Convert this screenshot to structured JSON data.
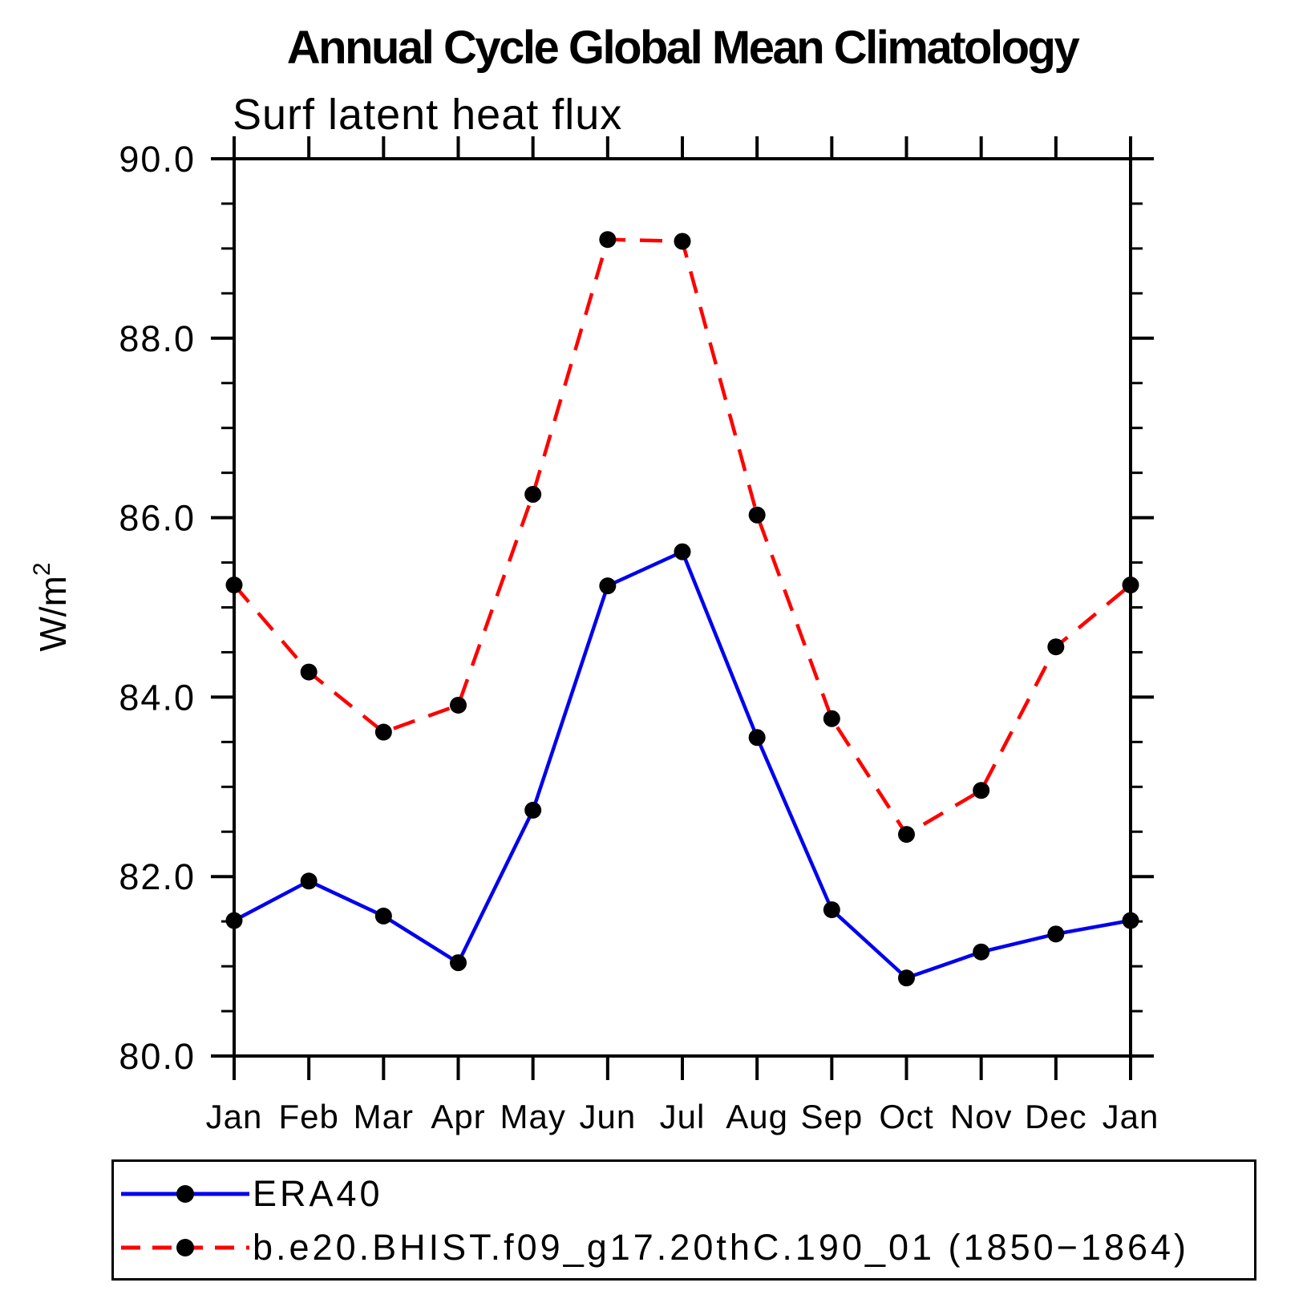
{
  "chart_data": {
    "type": "line",
    "title": "Annual Cycle Global Mean Climatology",
    "subtitle": "Surf latent heat flux",
    "ylabel": {
      "base": "W/m",
      "sup": "2"
    },
    "ylim": [
      80.0,
      90.0
    ],
    "ytick_major": 2.0,
    "ytick_minor": 0.5,
    "ytick_labels": [
      "80.0",
      "82.0",
      "84.0",
      "86.0",
      "88.0",
      "90.0"
    ],
    "categories": [
      "Jan",
      "Feb",
      "Mar",
      "Apr",
      "May",
      "Jun",
      "Jul",
      "Aug",
      "Sep",
      "Oct",
      "Nov",
      "Dec",
      "Jan"
    ],
    "grid": false,
    "legend_position": "bottom",
    "axis_color": "#000000",
    "marker_color": "#000000",
    "series": [
      {
        "name": "ERA40",
        "color": "#0000ee",
        "style": "solid",
        "marker": "circle",
        "values": [
          81.51,
          81.95,
          81.56,
          81.04,
          82.74,
          85.24,
          85.62,
          83.55,
          81.63,
          80.87,
          81.16,
          81.36,
          81.51
        ]
      },
      {
        "name": "b.e20.BHIST.f09_g17.20thC.190_01 (1850−1864)",
        "color": "#ff0000",
        "style": "dashed",
        "marker": "circle",
        "values": [
          85.25,
          84.28,
          83.61,
          83.91,
          86.26,
          89.1,
          89.08,
          86.03,
          83.76,
          82.47,
          82.96,
          84.56,
          85.25
        ]
      }
    ]
  }
}
